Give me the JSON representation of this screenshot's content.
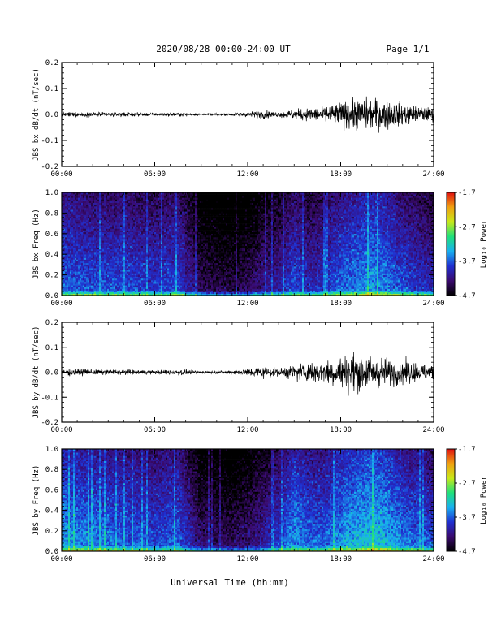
{
  "header": {
    "title": "2020/08/28  00:00-24:00 UT",
    "page": "Page 1/1"
  },
  "xaxis": {
    "label": "Universal Time (hh:mm)",
    "ticks": [
      "00:00",
      "06:00",
      "12:00",
      "18:00",
      "24:00"
    ],
    "range_hours": [
      0,
      24
    ]
  },
  "colorbar": {
    "label": "Log₁₀ Power",
    "ticks": [
      "-1.7",
      "-2.7",
      "-3.7",
      "-4.7"
    ],
    "range": [
      -4.7,
      -1.7
    ],
    "colors": [
      "#000000",
      "#3a0a6e",
      "#1f2fd0",
      "#18b0f0",
      "#1fe07a",
      "#c8e818",
      "#f0a010",
      "#e01010"
    ]
  },
  "chart_data": [
    {
      "type": "line",
      "ylabel": "JBS bx dB/dt (nT/sec)",
      "ylim": [
        -0.2,
        0.2
      ],
      "yticks": [
        "0.2",
        "0.1",
        "0.0",
        "-0.1",
        "-0.2"
      ],
      "envelope": {
        "hours": [
          0,
          2,
          4,
          6,
          7.5,
          9,
          10.5,
          12,
          13,
          14,
          15,
          16,
          17,
          18,
          19,
          20,
          21,
          22,
          23,
          24
        ],
        "amplitude": [
          0.012,
          0.011,
          0.01,
          0.007,
          0.009,
          0.005,
          0.005,
          0.012,
          0.02,
          0.012,
          0.025,
          0.03,
          0.04,
          0.06,
          0.075,
          0.08,
          0.07,
          0.055,
          0.04,
          0.03
        ]
      }
    },
    {
      "type": "heatmap",
      "ylabel": "JBS bx Freq (Hz)",
      "ylim": [
        0.0,
        1.0
      ],
      "yticks": [
        "1.0",
        "0.8",
        "0.6",
        "0.4",
        "0.2",
        "0.0"
      ],
      "units": "log10 power",
      "background_log_power": {
        "hours": [
          0,
          2,
          4,
          6,
          7.5,
          9,
          11,
          12,
          13,
          14,
          15,
          16,
          17,
          18,
          19,
          20,
          21,
          22,
          23,
          24
        ],
        "values": [
          -3.8,
          -3.9,
          -3.9,
          -4.0,
          -3.9,
          -4.5,
          -4.6,
          -4.5,
          -4.3,
          -4.2,
          -3.9,
          -4.1,
          -4.0,
          -3.8,
          -3.7,
          -3.6,
          -3.7,
          -3.9,
          -4.0,
          -4.1
        ]
      }
    },
    {
      "type": "line",
      "ylabel": "JBS by dB/dt (nT/sec)",
      "ylim": [
        -0.2,
        0.2
      ],
      "yticks": [
        "0.2",
        "0.1",
        "0.0",
        "-0.1",
        "-0.2"
      ],
      "envelope": {
        "hours": [
          0,
          2,
          4,
          6,
          7.5,
          9,
          10.5,
          12,
          13,
          14,
          15,
          16,
          17,
          18,
          19,
          20,
          21,
          22,
          23,
          24
        ],
        "amplitude": [
          0.018,
          0.015,
          0.013,
          0.01,
          0.015,
          0.007,
          0.007,
          0.02,
          0.03,
          0.018,
          0.04,
          0.05,
          0.06,
          0.08,
          0.1,
          0.08,
          0.07,
          0.06,
          0.05,
          0.04
        ]
      }
    },
    {
      "type": "heatmap",
      "ylabel": "JBS by Freq (Hz)",
      "ylim": [
        0.0,
        1.0
      ],
      "yticks": [
        "1.0",
        "0.8",
        "0.6",
        "0.4",
        "0.2",
        "0.0"
      ],
      "units": "log10 power",
      "background_log_power": {
        "hours": [
          0,
          2,
          4,
          6,
          7.5,
          9,
          11,
          12,
          13,
          14,
          15,
          16,
          17,
          18,
          19,
          20,
          21,
          22,
          23,
          24
        ],
        "values": [
          -3.6,
          -3.7,
          -3.8,
          -3.9,
          -3.8,
          -4.4,
          -4.5,
          -4.4,
          -4.2,
          -4.0,
          -3.6,
          -3.8,
          -3.8,
          -3.6,
          -3.5,
          -3.4,
          -3.5,
          -3.7,
          -3.8,
          -3.9
        ]
      }
    }
  ]
}
